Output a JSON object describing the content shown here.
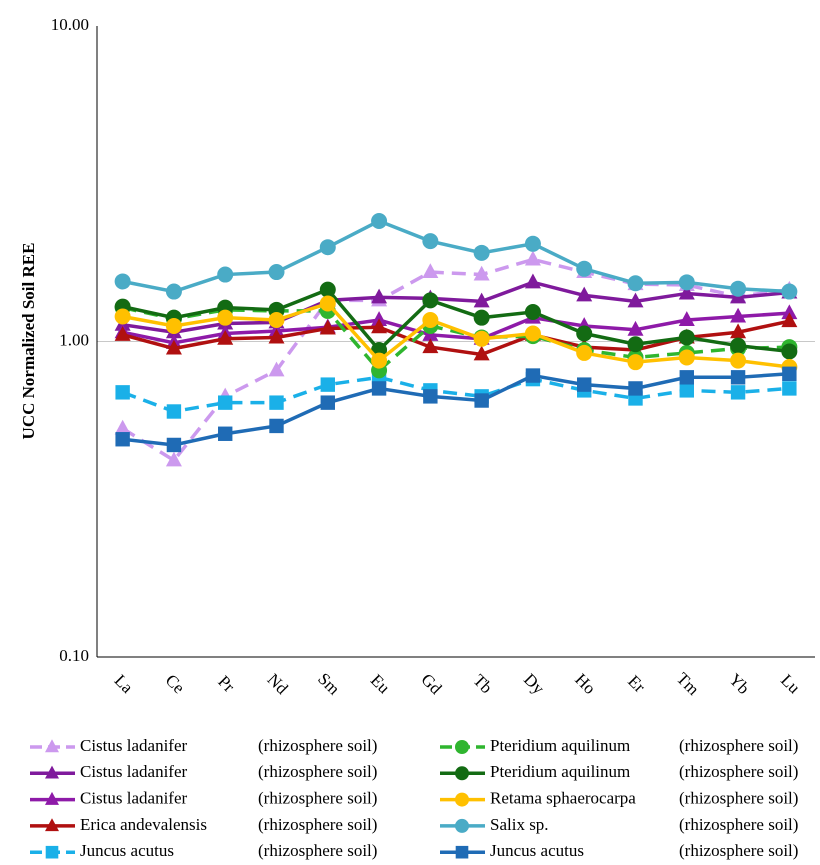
{
  "chart_data": {
    "type": "line",
    "y_label": "UCC Normalized Soil REE",
    "categories": [
      "La",
      "Ce",
      "Pr",
      "Nd",
      "Sm",
      "Eu",
      "Gd",
      "Tb",
      "Dy",
      "Ho",
      "Er",
      "Tm",
      "Yb",
      "Lu"
    ],
    "y_log": true,
    "ylim": [
      0.1,
      10
    ],
    "yticks": [
      {
        "value": 0.1,
        "label": "0.10"
      },
      {
        "value": 1,
        "label": "1.00"
      },
      {
        "value": 10,
        "label": "10.00"
      }
    ],
    "grid": true,
    "legend": "bottom",
    "series": [
      {
        "name": "Cistus ladanifer",
        "habitat": "(rhizosphere soil)",
        "color": "#cc99ee",
        "marker": "triangle",
        "dashed": true,
        "values": [
          0.53,
          0.42,
          0.67,
          0.81,
          1.35,
          1.35,
          1.66,
          1.63,
          1.82,
          1.66,
          1.52,
          1.51,
          1.39,
          1.46
        ]
      },
      {
        "name": "Cistus ladanifer",
        "habitat": "(rhizosphere soil)",
        "color": "#7f1a9c",
        "marker": "triangle",
        "dashed": false,
        "values": [
          1.13,
          1.07,
          1.14,
          1.15,
          1.35,
          1.38,
          1.37,
          1.34,
          1.54,
          1.4,
          1.34,
          1.42,
          1.38,
          1.43
        ]
      },
      {
        "name": "Cistus ladanifer",
        "habitat": "(rhizosphere soil)",
        "color": "#8e1aa8",
        "marker": "triangle",
        "dashed": false,
        "values": [
          1.07,
          0.99,
          1.06,
          1.08,
          1.11,
          1.17,
          1.05,
          1.02,
          1.19,
          1.12,
          1.09,
          1.17,
          1.2,
          1.23
        ]
      },
      {
        "name": "Erica andevalensis",
        "habitat": "(rhizosphere soil)",
        "color": "#b01010",
        "marker": "triangle",
        "dashed": false,
        "values": [
          1.05,
          0.95,
          1.02,
          1.03,
          1.1,
          1.11,
          0.96,
          0.91,
          1.05,
          0.96,
          0.94,
          1.03,
          1.07,
          1.16
        ]
      },
      {
        "name": "Juncus acutus",
        "habitat": "(rhizosphere soil)",
        "color": "#1ab0e8",
        "marker": "square",
        "dashed": true,
        "values": [
          0.69,
          0.6,
          0.64,
          0.64,
          0.73,
          0.77,
          0.7,
          0.67,
          0.76,
          0.7,
          0.66,
          0.7,
          0.69,
          0.71
        ]
      },
      {
        "name": "Pteridium aquilinum",
        "habitat": "(rhizosphere soil)",
        "color": "#2fb52f",
        "marker": "circle",
        "dashed": true,
        "values": [
          1.28,
          1.18,
          1.26,
          1.25,
          1.25,
          0.81,
          1.12,
          1.03,
          1.04,
          0.94,
          0.89,
          0.92,
          0.95,
          0.96
        ]
      },
      {
        "name": "Pteridium aquilinum",
        "habitat": "(rhizosphere soil)",
        "color": "#136b13",
        "marker": "circle",
        "dashed": false,
        "values": [
          1.29,
          1.19,
          1.28,
          1.26,
          1.46,
          0.94,
          1.35,
          1.19,
          1.24,
          1.06,
          0.98,
          1.03,
          0.97,
          0.93
        ]
      },
      {
        "name": "Retama sphaerocarpa",
        "habitat": "(rhizosphere soil)",
        "color": "#ffc000",
        "marker": "circle",
        "dashed": false,
        "values": [
          1.2,
          1.12,
          1.19,
          1.17,
          1.32,
          0.87,
          1.17,
          1.02,
          1.06,
          0.92,
          0.86,
          0.89,
          0.87,
          0.83
        ]
      },
      {
        "name": "Salix sp.",
        "habitat": "(rhizosphere soil)",
        "color": "#4aabc6",
        "marker": "circle",
        "dashed": false,
        "values": [
          1.55,
          1.44,
          1.63,
          1.66,
          1.99,
          2.41,
          2.08,
          1.91,
          2.04,
          1.7,
          1.53,
          1.54,
          1.47,
          1.44
        ]
      },
      {
        "name": "Juncus acutus",
        "habitat": "(rhizosphere soil)",
        "color": "#1f6bb5",
        "marker": "square",
        "dashed": false,
        "values": [
          0.49,
          0.47,
          0.51,
          0.54,
          0.64,
          0.71,
          0.67,
          0.65,
          0.78,
          0.73,
          0.71,
          0.77,
          0.77,
          0.79
        ]
      }
    ]
  }
}
